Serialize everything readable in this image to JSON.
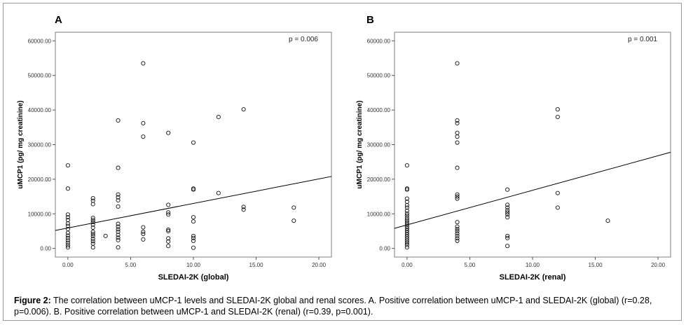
{
  "figure": {
    "caption_label": "Figure 2:",
    "caption_text": " The correlation between uMCP-1 levels and SLEDAI-2K global and renal scores. A. Positive correlation between uMCP-1 and SLEDAI-2K (global) (r=0.28, p=0.006). B. Positive correlation between uMCP-1 and SLEDAI-2K (renal) (r=0.39, p=0.001)."
  },
  "chart_data": [
    {
      "type": "scatter",
      "panel_label": "A",
      "annotation": "p = 0.006",
      "xlabel": "SLEDAI-2K (global)",
      "ylabel": "uMCP1 (pg/ mg creatinine)",
      "xlim": [
        -1,
        21
      ],
      "ylim": [
        -2500,
        62500
      ],
      "x_ticks": [
        "0.00",
        "5.00",
        "10.00",
        "15.00",
        "20.00"
      ],
      "y_ticks": [
        "0.00",
        "10000.00",
        "20000.00",
        "30000.00",
        "40000.00",
        "50000.00",
        "60000.00"
      ],
      "grid": false,
      "marker": "open-circle",
      "regression_line": [
        [
          -1,
          5200
        ],
        [
          21,
          20800
        ]
      ],
      "points": [
        [
          0,
          24000
        ],
        [
          0,
          17300
        ],
        [
          0,
          9800
        ],
        [
          0,
          9000
        ],
        [
          0,
          8200
        ],
        [
          0,
          7200
        ],
        [
          0,
          6500
        ],
        [
          0,
          5600
        ],
        [
          0,
          4500
        ],
        [
          0,
          3700
        ],
        [
          0,
          3000
        ],
        [
          0,
          2300
        ],
        [
          0,
          1600
        ],
        [
          0,
          900
        ],
        [
          0,
          300
        ],
        [
          2,
          14500
        ],
        [
          2,
          13800
        ],
        [
          2,
          12800
        ],
        [
          2,
          8800
        ],
        [
          2,
          8200
        ],
        [
          2,
          7600
        ],
        [
          2,
          6900
        ],
        [
          2,
          6000
        ],
        [
          2,
          4800
        ],
        [
          2,
          4200
        ],
        [
          2,
          3600
        ],
        [
          2,
          2800
        ],
        [
          2,
          2100
        ],
        [
          2,
          1400
        ],
        [
          2,
          300
        ],
        [
          3,
          3600
        ],
        [
          4,
          37000
        ],
        [
          4,
          23300
        ],
        [
          4,
          15600
        ],
        [
          4,
          14800
        ],
        [
          4,
          13900
        ],
        [
          4,
          12100
        ],
        [
          4,
          7100
        ],
        [
          4,
          6300
        ],
        [
          4,
          5500
        ],
        [
          4,
          4800
        ],
        [
          4,
          3900
        ],
        [
          4,
          3100
        ],
        [
          4,
          2400
        ],
        [
          4,
          300
        ],
        [
          6,
          53500
        ],
        [
          6,
          36200
        ],
        [
          6,
          32300
        ],
        [
          6,
          6100
        ],
        [
          6,
          4800
        ],
        [
          6,
          4200
        ],
        [
          6,
          2600
        ],
        [
          8,
          33400
        ],
        [
          8,
          12600
        ],
        [
          8,
          10400
        ],
        [
          8,
          9800
        ],
        [
          8,
          5400
        ],
        [
          8,
          5000
        ],
        [
          8,
          2900
        ],
        [
          8,
          2000
        ],
        [
          8,
          700
        ],
        [
          10,
          30600
        ],
        [
          10,
          17300
        ],
        [
          10,
          17000
        ],
        [
          10,
          9000
        ],
        [
          10,
          7800
        ],
        [
          10,
          3600
        ],
        [
          10,
          3000
        ],
        [
          10,
          2200
        ],
        [
          10,
          200
        ],
        [
          12,
          38000
        ],
        [
          12,
          16000
        ],
        [
          14,
          40200
        ],
        [
          14,
          12000
        ],
        [
          14,
          11200
        ],
        [
          18,
          11800
        ],
        [
          18,
          8000
        ]
      ]
    },
    {
      "type": "scatter",
      "panel_label": "B",
      "annotation": "p = 0.001",
      "xlabel": "SLEDAI-2K (renal)",
      "ylabel": "uMCP1 (pg/ mg creatinine)",
      "xlim": [
        -1,
        21
      ],
      "ylim": [
        -2500,
        62500
      ],
      "x_ticks": [
        "0.00",
        "5.00",
        "10.00",
        "15.00",
        "20.00"
      ],
      "y_ticks": [
        "0.00",
        "10000.00",
        "20000.00",
        "30000.00",
        "40000.00",
        "50000.00",
        "60000.00"
      ],
      "grid": false,
      "marker": "open-circle",
      "regression_line": [
        [
          -1,
          5800
        ],
        [
          21,
          27800
        ]
      ],
      "points": [
        [
          0,
          24000
        ],
        [
          0,
          17300
        ],
        [
          0,
          17000
        ],
        [
          0,
          14400
        ],
        [
          0,
          13500
        ],
        [
          0,
          12500
        ],
        [
          0,
          11800
        ],
        [
          0,
          10900
        ],
        [
          0,
          10100
        ],
        [
          0,
          9500
        ],
        [
          0,
          8800
        ],
        [
          0,
          8200
        ],
        [
          0,
          7600
        ],
        [
          0,
          7000
        ],
        [
          0,
          6400
        ],
        [
          0,
          5800
        ],
        [
          0,
          5200
        ],
        [
          0,
          4600
        ],
        [
          0,
          4000
        ],
        [
          0,
          3400
        ],
        [
          0,
          2800
        ],
        [
          0,
          2200
        ],
        [
          0,
          1600
        ],
        [
          0,
          1000
        ],
        [
          0,
          300
        ],
        [
          4,
          53500
        ],
        [
          4,
          37000
        ],
        [
          4,
          36200
        ],
        [
          4,
          33400
        ],
        [
          4,
          32300
        ],
        [
          4,
          30600
        ],
        [
          4,
          23300
        ],
        [
          4,
          15600
        ],
        [
          4,
          15000
        ],
        [
          4,
          14400
        ],
        [
          4,
          7600
        ],
        [
          4,
          6300
        ],
        [
          4,
          5600
        ],
        [
          4,
          5000
        ],
        [
          4,
          4300
        ],
        [
          4,
          3600
        ],
        [
          4,
          2900
        ],
        [
          4,
          2200
        ],
        [
          8,
          17000
        ],
        [
          8,
          12600
        ],
        [
          8,
          11800
        ],
        [
          8,
          11000
        ],
        [
          8,
          10400
        ],
        [
          8,
          9800
        ],
        [
          8,
          9000
        ],
        [
          8,
          3600
        ],
        [
          8,
          3000
        ],
        [
          8,
          700
        ],
        [
          12,
          40200
        ],
        [
          12,
          38000
        ],
        [
          12,
          16000
        ],
        [
          12,
          11800
        ],
        [
          16,
          8000
        ]
      ]
    }
  ]
}
